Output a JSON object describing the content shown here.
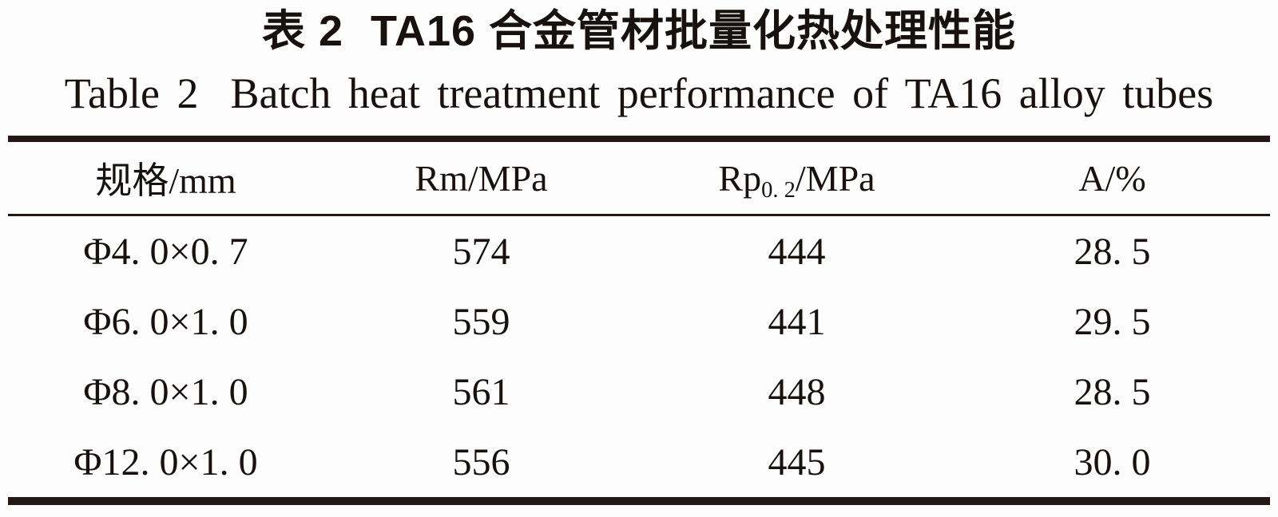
{
  "page": {
    "background": "#fdfdfd",
    "text_color": "#17120f",
    "rule_color": "#231815"
  },
  "caption_zh": {
    "prefix": "表 2",
    "title": "TA16 合金管材批量化热处理性能"
  },
  "caption_en": {
    "prefix": "Table 2",
    "title": "Batch heat treatment performance of TA16 alloy tubes"
  },
  "table": {
    "headers": [
      {
        "label": "规格/mm"
      },
      {
        "label": "Rm/MPa"
      },
      {
        "prefix": "Rp",
        "sub": "0. 2",
        "suffix": "/MPa"
      },
      {
        "label": "A/%"
      }
    ],
    "rows": [
      {
        "spec": "Φ4. 0×0. 7",
        "rm": "574",
        "rp02": "444",
        "a": "28. 5"
      },
      {
        "spec": "Φ6. 0×1. 0",
        "rm": "559",
        "rp02": "441",
        "a": "29. 5"
      },
      {
        "spec": "Φ8. 0×1. 0",
        "rm": "561",
        "rp02": "448",
        "a": "28. 5"
      },
      {
        "spec": "Φ12. 0×1. 0",
        "rm": "556",
        "rp02": "445",
        "a": "30. 0"
      }
    ]
  }
}
